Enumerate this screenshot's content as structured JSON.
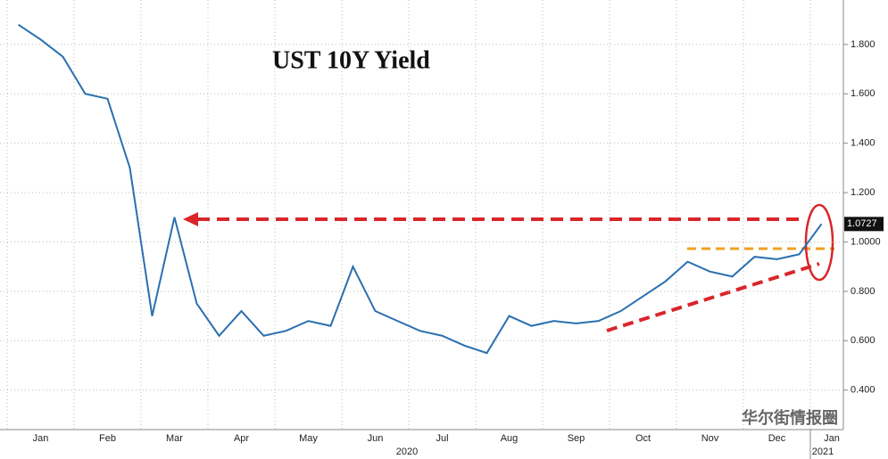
{
  "chart_data": {
    "type": "line",
    "title": "UST 10Y Yield",
    "categories": [
      null,
      "Jan",
      null,
      null,
      "Feb",
      null,
      null,
      "Mar",
      null,
      null,
      "Apr",
      null,
      null,
      "May",
      null,
      null,
      "Jun",
      null,
      null,
      "Jul",
      null,
      null,
      "Aug",
      null,
      null,
      "Sep",
      null,
      null,
      "Oct",
      null,
      null,
      "Nov",
      null,
      null,
      "Dec",
      null,
      "Jan"
    ],
    "series": [
      {
        "name": "UST 10Y Yield",
        "color": "#2a6fb0",
        "values": [
          1.88,
          1.82,
          1.75,
          1.6,
          1.58,
          1.3,
          0.7,
          1.1,
          0.75,
          0.62,
          0.72,
          0.62,
          0.64,
          0.68,
          0.66,
          0.9,
          0.72,
          0.68,
          0.64,
          0.62,
          0.58,
          0.55,
          0.7,
          0.66,
          0.68,
          0.67,
          0.68,
          0.72,
          0.78,
          0.84,
          0.92,
          0.88,
          0.86,
          0.94,
          0.93,
          0.95,
          1.0727
        ],
        "value_labels": [
          null,
          null,
          null,
          null,
          null,
          null,
          null,
          null,
          null,
          null,
          null,
          null,
          null,
          null,
          null,
          null,
          null,
          null,
          null,
          null,
          null,
          null,
          null,
          null,
          null,
          null,
          null,
          null,
          null,
          null,
          null,
          null,
          null,
          null,
          null,
          null,
          "1.0727"
        ]
      }
    ],
    "year_labels": [
      "2020",
      "2021"
    ],
    "watermark": "华尔街情报圈",
    "ylim": [
      0.24,
      1.98
    ],
    "yticks": [
      {
        "value": 0.4,
        "label": "0.400"
      },
      {
        "value": 0.6,
        "label": "0.600"
      },
      {
        "value": 0.8,
        "label": "0.800"
      },
      {
        "value": 1.0,
        "label": "1.0000"
      },
      {
        "value": 1.2,
        "label": "1.200"
      },
      {
        "value": 1.4,
        "label": "1.400"
      },
      {
        "value": 1.6,
        "label": "1.600"
      },
      {
        "value": 1.8,
        "label": "1.800"
      }
    ],
    "grid": true
  }
}
